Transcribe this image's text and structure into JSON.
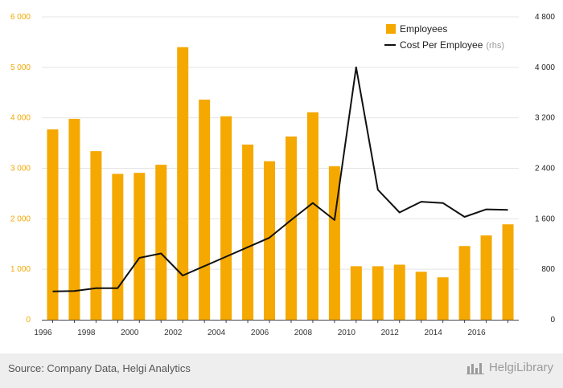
{
  "chart_data": {
    "type": "bar+line",
    "categories": [
      "1996",
      "1997",
      "1998",
      "1999",
      "2000",
      "2001",
      "2002",
      "2003",
      "2004",
      "2005",
      "2006",
      "2007",
      "2008",
      "2009",
      "2010",
      "2011",
      "2012",
      "2013",
      "2014",
      "2015",
      "2016",
      "2017"
    ],
    "series": [
      {
        "name": "Employees",
        "type": "bar",
        "axis": "left",
        "color": "#f5a800",
        "values": [
          3770,
          3980,
          3340,
          2890,
          2910,
          3070,
          5400,
          4360,
          4030,
          3470,
          3140,
          3630,
          4110,
          3040,
          1060,
          1060,
          1090,
          950,
          840,
          1460,
          1670,
          1890
        ]
      },
      {
        "name": "Cost Per Employee",
        "type": "line",
        "axis": "right",
        "color": "#111111",
        "values": [
          450,
          455,
          500,
          500,
          980,
          1050,
          700,
          850,
          1000,
          1150,
          1300,
          1580,
          1850,
          1580,
          4000,
          2060,
          1700,
          1870,
          1850,
          1630,
          1750,
          1740
        ]
      }
    ],
    "y_left": {
      "min": 0,
      "max": 6000,
      "ticks": [
        0,
        1000,
        2000,
        3000,
        4000,
        5000,
        6000
      ],
      "tick_labels": [
        "0",
        "1 000",
        "2 000",
        "3 000",
        "4 000",
        "5 000",
        "6 000"
      ]
    },
    "y_right": {
      "min": 0,
      "max": 4800,
      "ticks": [
        0,
        800,
        1600,
        2400,
        3200,
        4000,
        4800
      ],
      "tick_labels": [
        "0",
        "800",
        "1 600",
        "2 400",
        "3 200",
        "4 000",
        "4 800"
      ]
    },
    "x_tick_labels": [
      "1996",
      "1998",
      "2000",
      "2002",
      "2004",
      "2006",
      "2008",
      "2010",
      "2012",
      "2014",
      "2016"
    ],
    "legend": {
      "position": "top-right",
      "items": [
        {
          "label": "Employees",
          "suffix": ""
        },
        {
          "label": "Cost Per Employee",
          "suffix": "(rhs)"
        }
      ]
    },
    "grid": true
  },
  "footer": {
    "source": "Source: Company Data, Helgi Analytics",
    "brand": "HelgiLibrary"
  }
}
